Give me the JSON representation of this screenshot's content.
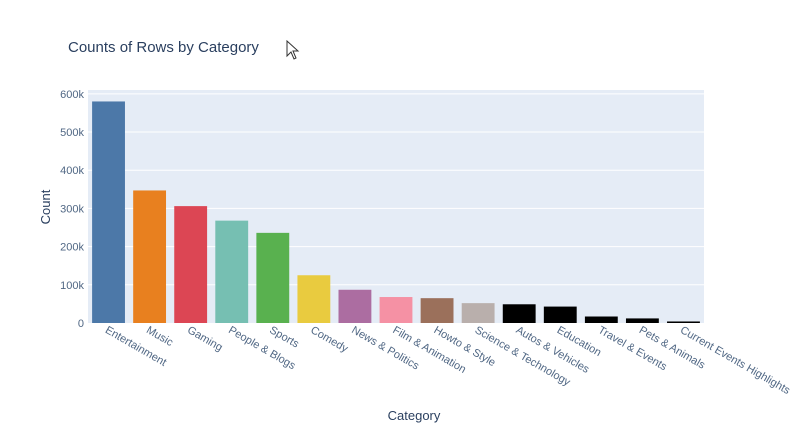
{
  "chart_data": {
    "type": "bar",
    "title": "Counts of Rows by Category",
    "xlabel": "Category",
    "ylabel": "Count",
    "ylim": [
      0,
      610000
    ],
    "yticks": [
      0,
      100000,
      200000,
      300000,
      400000,
      500000,
      600000
    ],
    "ytick_labels": [
      "0",
      "100k",
      "200k",
      "300k",
      "400k",
      "500k",
      "600k"
    ],
    "grid": true,
    "categories": [
      "Entertainment",
      "Music",
      "Gaming",
      "People & Blogs",
      "Sports",
      "Comedy",
      "News & Politics",
      "Film & Animation",
      "Howto & Style",
      "Science & Technology",
      "Autos & Vehicles",
      "Education",
      "Travel & Events",
      "Pets & Animals",
      "Current Events Highlights"
    ],
    "values": [
      580000,
      347000,
      306000,
      268000,
      236000,
      125000,
      87000,
      68000,
      65000,
      52000,
      49000,
      43000,
      17000,
      12000,
      4000
    ],
    "colors": [
      "#4c78a8",
      "#e8801f",
      "#dc4654",
      "#76bfb2",
      "#59b14f",
      "#e9cb3f",
      "#ac6da1",
      "#f591a4",
      "#9b705b",
      "#b9afac",
      "#000000",
      "#000000",
      "#000000",
      "#000000",
      "#000000"
    ]
  },
  "theme": {
    "plot_bg": "#e5ecf6",
    "grid_color": "#ffffff"
  }
}
